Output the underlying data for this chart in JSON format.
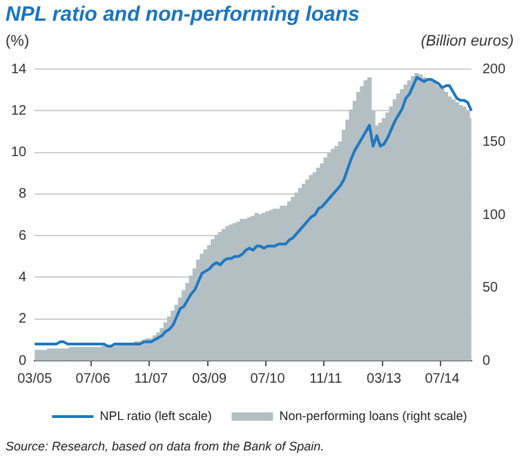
{
  "chart_data": {
    "type": "bar",
    "title": "NPL ratio and non-performing loans",
    "ylabel": "(%)",
    "y2label": "(Billion euros)",
    "categories": [
      "03/05",
      null,
      null,
      null,
      null,
      null,
      null,
      null,
      null,
      null,
      null,
      null,
      null,
      null,
      null,
      null,
      "07/06",
      null,
      null,
      null,
      null,
      null,
      null,
      null,
      null,
      null,
      null,
      null,
      null,
      null,
      null,
      null,
      "11/07",
      null,
      null,
      null,
      null,
      null,
      null,
      null,
      null,
      null,
      null,
      null,
      null,
      null,
      null,
      null,
      "03/09",
      null,
      null,
      null,
      null,
      null,
      null,
      null,
      null,
      null,
      null,
      null,
      null,
      null,
      null,
      null,
      "07/10",
      null,
      null,
      null,
      null,
      null,
      null,
      null,
      null,
      null,
      null,
      null,
      null,
      null,
      null,
      null,
      "11/11",
      null,
      null,
      null,
      null,
      null,
      null,
      null,
      null,
      null,
      null,
      null,
      null,
      null,
      null,
      null,
      "03/13",
      null,
      null,
      null,
      null,
      null,
      null,
      null,
      null,
      null,
      null,
      null,
      null,
      null,
      null,
      null,
      "07/14",
      null,
      null,
      null,
      null,
      null,
      null,
      null,
      null
    ],
    "series": [
      {
        "name": "Non-performing loans (right scale)",
        "axis": "y2",
        "color": "#b4bfc3",
        "values": [
          7,
          7,
          7,
          7,
          8,
          8,
          8,
          8,
          8,
          8,
          9,
          9,
          9,
          9,
          9,
          9,
          9,
          9,
          9,
          10,
          10,
          10,
          10,
          10,
          11,
          11,
          12,
          12,
          13,
          13,
          14,
          15,
          15,
          17,
          19,
          22,
          26,
          30,
          34,
          38,
          43,
          48,
          53,
          58,
          63,
          69,
          73,
          76,
          79,
          83,
          86,
          88,
          90,
          92,
          93,
          94,
          95,
          97,
          97,
          98,
          99,
          101,
          100,
          101,
          102,
          103,
          104,
          104,
          106,
          106,
          109,
          112,
          115,
          118,
          121,
          124,
          127,
          129,
          132,
          135,
          139,
          142,
          145,
          147,
          150,
          158,
          165,
          172,
          178,
          184,
          188,
          192,
          194,
          171,
          161,
          163,
          166,
          170,
          174,
          179,
          183,
          186,
          189,
          192,
          195,
          197,
          196,
          194,
          193,
          192,
          191,
          188,
          186,
          184,
          181,
          179,
          177,
          175,
          174,
          171,
          166
        ]
      },
      {
        "name": "NPL ratio (left scale)",
        "type": "line",
        "color": "#1f78c1",
        "values": [
          0.8,
          0.8,
          0.8,
          0.8,
          0.8,
          0.8,
          0.8,
          0.9,
          0.9,
          0.8,
          0.8,
          0.8,
          0.8,
          0.8,
          0.8,
          0.8,
          0.8,
          0.8,
          0.8,
          0.8,
          0.7,
          0.7,
          0.8,
          0.8,
          0.8,
          0.8,
          0.8,
          0.8,
          0.8,
          0.8,
          0.9,
          0.9,
          0.9,
          1.0,
          1.1,
          1.2,
          1.4,
          1.5,
          1.7,
          2.1,
          2.5,
          2.6,
          2.9,
          3.2,
          3.4,
          3.8,
          4.2,
          4.3,
          4.4,
          4.6,
          4.7,
          4.6,
          4.8,
          4.9,
          4.9,
          5.0,
          5.0,
          5.1,
          5.3,
          5.4,
          5.3,
          5.5,
          5.5,
          5.4,
          5.5,
          5.5,
          5.5,
          5.6,
          5.6,
          5.6,
          5.8,
          5.9,
          6.1,
          6.3,
          6.5,
          6.7,
          6.9,
          7.0,
          7.3,
          7.4,
          7.6,
          7.8,
          8.0,
          8.2,
          8.4,
          8.7,
          9.2,
          9.7,
          10.1,
          10.4,
          10.7,
          11.0,
          11.3,
          10.3,
          10.8,
          10.3,
          10.4,
          10.7,
          11.1,
          11.5,
          11.8,
          12.1,
          12.6,
          12.8,
          13.2,
          13.6,
          13.5,
          13.4,
          13.5,
          13.5,
          13.4,
          13.3,
          13.1,
          13.2,
          13.2,
          12.9,
          12.6,
          12.5,
          12.5,
          12.4,
          12.0
        ]
      }
    ],
    "ylim": [
      0,
      14
    ],
    "yticks": [
      0,
      2,
      4,
      6,
      8,
      10,
      12,
      14
    ],
    "y2lim": [
      0,
      200
    ],
    "y2ticks": [
      0,
      50,
      100,
      150,
      200
    ],
    "grid": "y",
    "legend": "bottom",
    "marker": "none",
    "annotations": [
      "Source: Research, based on data from the Bank of Spain."
    ]
  }
}
